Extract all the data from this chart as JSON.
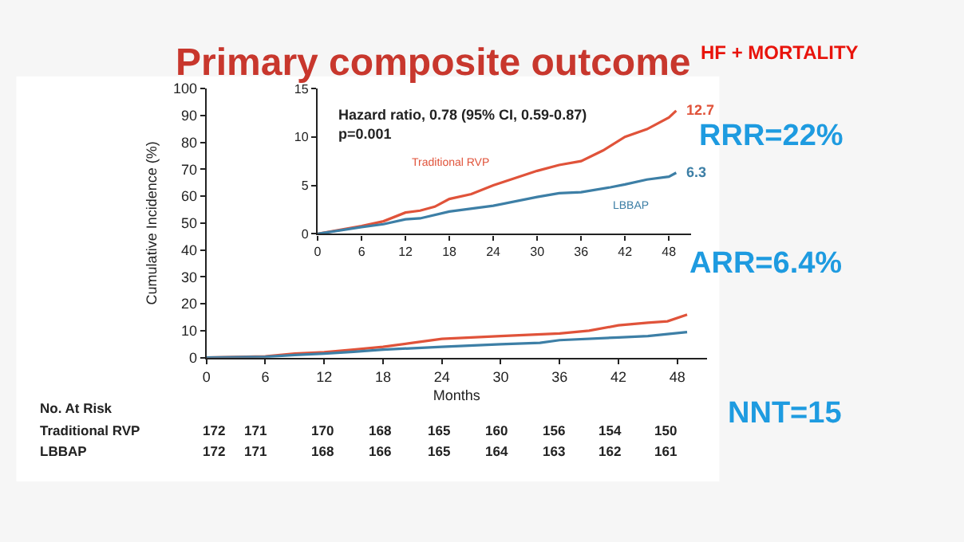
{
  "chart_data": [
    {
      "type": "line",
      "title": "Primary composite outcome",
      "xlabel": "Months",
      "ylabel": "Cumulative Incidence (%)",
      "xlim": [
        0,
        51
      ],
      "xticks": [
        0,
        6,
        12,
        18,
        24,
        30,
        36,
        42,
        48
      ],
      "ylim": [
        0,
        100
      ],
      "yticks": [
        0,
        10,
        20,
        30,
        40,
        50,
        60,
        70,
        80,
        90,
        100
      ],
      "legend": false,
      "marker": "none",
      "line_style": "solid",
      "series": [
        {
          "color": "#e0533a",
          "x": [
            0,
            6,
            9,
            12,
            15,
            18,
            21,
            24,
            30,
            36,
            39,
            42,
            45,
            47,
            49
          ],
          "values": [
            0,
            0.5,
            1.5,
            2,
            3,
            4,
            5.5,
            7,
            8,
            9,
            10,
            12,
            13,
            13.5,
            16
          ]
        },
        {
          "color": "#3d7fa6",
          "x": [
            0,
            6,
            9,
            12,
            15,
            18,
            24,
            30,
            34,
            36,
            42,
            45,
            49
          ],
          "values": [
            0,
            0.3,
            1,
            1.5,
            2.2,
            3,
            4,
            5,
            5.5,
            6.5,
            7.5,
            8,
            9.5
          ]
        }
      ],
      "annotations": [
        "HF + MORTALITY",
        "RRR=22%",
        "ARR=6.4%",
        "NNT=15",
        "No. At Risk",
        "Traditional RVP",
        "LBBAP",
        "172",
        "171",
        "170",
        "168",
        "165",
        "160",
        "156",
        "154",
        "150",
        "172",
        "171",
        "168",
        "166",
        "165",
        "164",
        "163",
        "162",
        "161"
      ]
    },
    {
      "type": "line",
      "xlim": [
        0,
        51
      ],
      "xticks": [
        0,
        6,
        12,
        18,
        24,
        30,
        36,
        42,
        48
      ],
      "ylim": [
        0,
        15
      ],
      "yticks": [
        0,
        5,
        10,
        15
      ],
      "legend": false,
      "marker": "none",
      "line_style": "solid",
      "series": [
        {
          "name": "Traditional RVP",
          "color": "#e0533a",
          "x": [
            0,
            6,
            9,
            12,
            14,
            16,
            18,
            21,
            24,
            30,
            33,
            36,
            39,
            42,
            45,
            48,
            49
          ],
          "values": [
            0,
            0.8,
            1.3,
            2.2,
            2.4,
            2.8,
            3.6,
            4.1,
            5.0,
            6.5,
            7.1,
            7.5,
            8.6,
            10.0,
            10.8,
            12.0,
            12.7
          ]
        },
        {
          "name": "LBBAP",
          "color": "#3d7fa6",
          "x": [
            0,
            6,
            9,
            12,
            14,
            18,
            24,
            30,
            33,
            36,
            40,
            42,
            45,
            48,
            49
          ],
          "values": [
            0,
            0.7,
            1.0,
            1.5,
            1.6,
            2.3,
            2.9,
            3.8,
            4.2,
            4.3,
            4.8,
            5.1,
            5.6,
            5.9,
            6.3
          ]
        }
      ],
      "annotations": [
        "Hazard ratio, 0.78 (95% CI, 0.59-0.87)",
        "p=0.001",
        {
          "text": "12.7",
          "x": 49,
          "y": 12.7
        },
        {
          "text": "6.3",
          "x": 49,
          "y": 6.3
        }
      ]
    }
  ]
}
